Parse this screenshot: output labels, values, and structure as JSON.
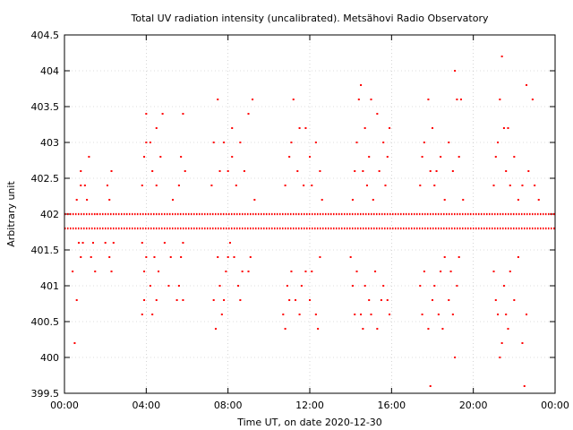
{
  "chart_data": {
    "type": "scatter",
    "title": "Total UV radiation intensity (uncalibrated). Metsähovi Radio Observatory",
    "xlabel": "Time UT, on date 2020-12-30",
    "ylabel": "Arbitrary unit",
    "xlim": [
      0,
      24
    ],
    "ylim": [
      399.5,
      404.5
    ],
    "x_unit": "hours",
    "x_ticks": [
      0,
      4,
      8,
      12,
      16,
      20,
      24
    ],
    "x_tick_labels": [
      "00:00",
      "04:00",
      "08:00",
      "12:00",
      "16:00",
      "20:00",
      "00:00"
    ],
    "y_ticks": [
      399.5,
      400,
      400.5,
      401,
      401.5,
      402,
      402.5,
      403,
      403.5,
      404,
      404.5
    ],
    "y_tick_labels": [
      "399.5",
      "400",
      "400.5",
      "401",
      "401.5",
      "402",
      "402.5",
      "403",
      "403.5",
      "404",
      "404.5"
    ],
    "grid": true,
    "marker_color": "#ff0000",
    "series": [
      {
        "points": [
          [
            0.5,
            400.2
          ],
          [
            0.6,
            400.8
          ],
          [
            0.4,
            401.2
          ],
          [
            0.8,
            401.4
          ],
          [
            0.7,
            401.6
          ],
          [
            0.9,
            401.6
          ],
          [
            0.6,
            402.2
          ],
          [
            0.8,
            402.4
          ],
          [
            1.0,
            402.4
          ],
          [
            0.8,
            402.6
          ],
          [
            1.2,
            402.8
          ],
          [
            1.4,
            401.6
          ],
          [
            1.5,
            401.2
          ],
          [
            1.3,
            401.4
          ],
          [
            1.1,
            402.2
          ],
          [
            1.6,
            402.0
          ],
          [
            2.0,
            401.6
          ],
          [
            2.2,
            401.4
          ],
          [
            2.3,
            401.2
          ],
          [
            2.2,
            402.2
          ],
          [
            2.1,
            402.4
          ],
          [
            2.3,
            402.6
          ],
          [
            2.4,
            401.6
          ],
          [
            3.8,
            400.6
          ],
          [
            3.9,
            400.8
          ],
          [
            3.9,
            401.2
          ],
          [
            3.8,
            401.6
          ],
          [
            4.0,
            401.4
          ],
          [
            4.2,
            401.0
          ],
          [
            4.3,
            400.6
          ],
          [
            4.5,
            400.8
          ],
          [
            4.6,
            401.2
          ],
          [
            4.4,
            401.4
          ],
          [
            3.8,
            402.4
          ],
          [
            3.9,
            402.8
          ],
          [
            4.0,
            403.0
          ],
          [
            4.2,
            403.0
          ],
          [
            4.0,
            403.4
          ],
          [
            4.3,
            402.6
          ],
          [
            4.5,
            402.4
          ],
          [
            4.7,
            402.8
          ],
          [
            4.5,
            403.2
          ],
          [
            4.8,
            403.4
          ],
          [
            4.9,
            401.6
          ],
          [
            5.1,
            401.0
          ],
          [
            5.2,
            401.4
          ],
          [
            5.3,
            402.2
          ],
          [
            5.5,
            400.8
          ],
          [
            5.6,
            401.0
          ],
          [
            5.7,
            401.4
          ],
          [
            5.8,
            400.8
          ],
          [
            5.6,
            402.4
          ],
          [
            5.7,
            402.8
          ],
          [
            5.8,
            403.4
          ],
          [
            5.9,
            402.6
          ],
          [
            5.8,
            401.6
          ],
          [
            7.3,
            400.8
          ],
          [
            7.4,
            400.4
          ],
          [
            7.6,
            401.0
          ],
          [
            7.5,
            401.4
          ],
          [
            7.7,
            400.6
          ],
          [
            7.8,
            400.8
          ],
          [
            7.9,
            401.2
          ],
          [
            8.0,
            401.4
          ],
          [
            8.1,
            401.6
          ],
          [
            8.3,
            401.4
          ],
          [
            8.5,
            401.0
          ],
          [
            8.6,
            400.8
          ],
          [
            8.7,
            401.2
          ],
          [
            9.0,
            401.2
          ],
          [
            9.1,
            401.4
          ],
          [
            7.2,
            402.4
          ],
          [
            7.3,
            403.0
          ],
          [
            7.5,
            403.6
          ],
          [
            7.6,
            402.6
          ],
          [
            7.8,
            403.0
          ],
          [
            8.0,
            402.6
          ],
          [
            8.2,
            403.2
          ],
          [
            8.2,
            402.8
          ],
          [
            8.4,
            402.4
          ],
          [
            8.6,
            403.0
          ],
          [
            8.8,
            402.6
          ],
          [
            9.0,
            403.4
          ],
          [
            9.2,
            403.6
          ],
          [
            9.3,
            402.2
          ],
          [
            10.7,
            400.6
          ],
          [
            10.8,
            400.4
          ],
          [
            10.9,
            401.0
          ],
          [
            11.0,
            400.8
          ],
          [
            11.1,
            401.2
          ],
          [
            11.3,
            400.8
          ],
          [
            11.5,
            400.6
          ],
          [
            11.6,
            401.0
          ],
          [
            11.8,
            401.2
          ],
          [
            12.0,
            400.8
          ],
          [
            12.1,
            401.2
          ],
          [
            12.3,
            400.6
          ],
          [
            12.4,
            400.4
          ],
          [
            12.5,
            401.4
          ],
          [
            10.8,
            402.4
          ],
          [
            11.0,
            402.8
          ],
          [
            11.1,
            403.0
          ],
          [
            11.2,
            403.6
          ],
          [
            11.4,
            402.6
          ],
          [
            11.5,
            403.2
          ],
          [
            11.7,
            402.4
          ],
          [
            11.8,
            403.2
          ],
          [
            12.0,
            402.8
          ],
          [
            12.1,
            402.4
          ],
          [
            12.3,
            403.0
          ],
          [
            12.5,
            402.6
          ],
          [
            12.6,
            402.2
          ],
          [
            14.0,
            401.4
          ],
          [
            14.1,
            401.0
          ],
          [
            14.2,
            400.6
          ],
          [
            14.3,
            401.2
          ],
          [
            14.5,
            400.6
          ],
          [
            14.6,
            400.4
          ],
          [
            14.7,
            401.0
          ],
          [
            14.9,
            400.8
          ],
          [
            15.0,
            400.6
          ],
          [
            15.2,
            401.2
          ],
          [
            15.3,
            400.4
          ],
          [
            15.5,
            400.8
          ],
          [
            15.6,
            401.0
          ],
          [
            15.8,
            400.8
          ],
          [
            15.9,
            400.6
          ],
          [
            14.1,
            402.2
          ],
          [
            14.2,
            402.6
          ],
          [
            14.3,
            403.0
          ],
          [
            14.4,
            403.6
          ],
          [
            14.5,
            403.8
          ],
          [
            14.6,
            402.6
          ],
          [
            14.7,
            403.2
          ],
          [
            14.8,
            402.4
          ],
          [
            14.9,
            402.8
          ],
          [
            15.0,
            403.6
          ],
          [
            15.1,
            402.2
          ],
          [
            15.3,
            403.4
          ],
          [
            15.4,
            402.6
          ],
          [
            15.6,
            403.0
          ],
          [
            15.7,
            402.4
          ],
          [
            15.8,
            402.8
          ],
          [
            15.9,
            403.2
          ],
          [
            17.4,
            401.0
          ],
          [
            17.5,
            400.6
          ],
          [
            17.6,
            401.2
          ],
          [
            17.8,
            400.4
          ],
          [
            17.9,
            399.6
          ],
          [
            18.0,
            400.8
          ],
          [
            18.1,
            401.0
          ],
          [
            18.3,
            400.6
          ],
          [
            18.4,
            401.2
          ],
          [
            18.5,
            400.4
          ],
          [
            18.6,
            401.4
          ],
          [
            18.8,
            400.8
          ],
          [
            18.9,
            401.2
          ],
          [
            19.0,
            400.6
          ],
          [
            19.1,
            400.0
          ],
          [
            19.2,
            401.0
          ],
          [
            19.3,
            401.4
          ],
          [
            17.4,
            402.4
          ],
          [
            17.5,
            402.8
          ],
          [
            17.6,
            403.0
          ],
          [
            17.8,
            403.6
          ],
          [
            17.9,
            402.6
          ],
          [
            18.0,
            403.2
          ],
          [
            18.1,
            402.4
          ],
          [
            18.2,
            402.6
          ],
          [
            18.4,
            402.8
          ],
          [
            18.6,
            402.2
          ],
          [
            18.8,
            403.0
          ],
          [
            19.0,
            402.6
          ],
          [
            19.1,
            404.0
          ],
          [
            19.2,
            403.6
          ],
          [
            19.3,
            402.8
          ],
          [
            19.4,
            403.6
          ],
          [
            19.5,
            402.2
          ],
          [
            21.0,
            401.2
          ],
          [
            21.1,
            400.8
          ],
          [
            21.2,
            400.6
          ],
          [
            21.3,
            400.0
          ],
          [
            21.4,
            400.2
          ],
          [
            21.5,
            401.0
          ],
          [
            21.6,
            400.6
          ],
          [
            21.7,
            400.4
          ],
          [
            21.8,
            401.2
          ],
          [
            22.0,
            400.8
          ],
          [
            22.2,
            401.4
          ],
          [
            22.4,
            400.2
          ],
          [
            22.5,
            399.6
          ],
          [
            22.6,
            400.6
          ],
          [
            21.0,
            402.4
          ],
          [
            21.1,
            402.8
          ],
          [
            21.2,
            403.0
          ],
          [
            21.3,
            403.6
          ],
          [
            21.4,
            404.2
          ],
          [
            21.5,
            403.2
          ],
          [
            21.6,
            402.6
          ],
          [
            21.7,
            403.2
          ],
          [
            21.8,
            402.4
          ],
          [
            22.0,
            402.8
          ],
          [
            22.2,
            402.2
          ],
          [
            22.4,
            402.4
          ],
          [
            22.6,
            403.8
          ],
          [
            22.7,
            402.6
          ],
          [
            22.9,
            403.6
          ],
          [
            23.0,
            402.4
          ],
          [
            23.2,
            402.2
          ]
        ]
      }
    ]
  }
}
